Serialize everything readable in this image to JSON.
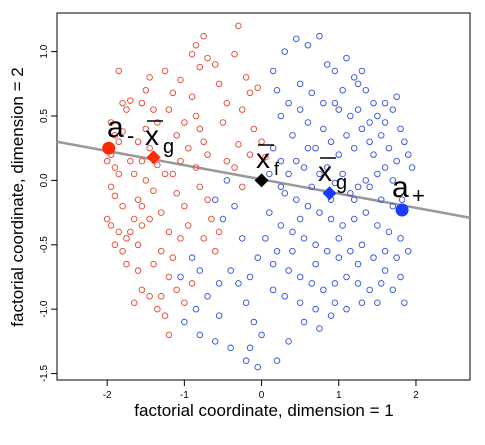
{
  "chart_data": {
    "type": "scatter",
    "title": "",
    "xlabel": "factorial coordinate, dimension = 1",
    "ylabel": "factorial coordinate, dimension = 2",
    "xlim": [
      -2.65,
      2.7
    ],
    "ylim": [
      -1.55,
      1.3
    ],
    "xticks": [
      -2,
      -1,
      0,
      1,
      2
    ],
    "yticks": [
      -1.5,
      -1.0,
      -0.5,
      0.0,
      0.5,
      1.0
    ],
    "xtick_labels": [
      "-2",
      "-1",
      "0",
      "1",
      "2"
    ],
    "ytick_labels": [
      "-1.5",
      "-1.0",
      "-0.5",
      "0.0",
      "0.5",
      "1.0"
    ],
    "grid": false,
    "legend": "none",
    "series": [
      {
        "color": "#e8442b",
        "marker": "open-circle",
        "points": [
          [
            -1.85,
            0.85
          ],
          [
            -1.8,
            0.6
          ],
          [
            -1.75,
            0.55
          ],
          [
            -1.7,
            0.62
          ],
          [
            -1.95,
            0.45
          ],
          [
            -1.9,
            0.35
          ],
          [
            -1.85,
            0.3
          ],
          [
            -1.8,
            0.38
          ],
          [
            -1.95,
            0.2
          ],
          [
            -2.0,
            0.15
          ],
          [
            -1.9,
            0.1
          ],
          [
            -1.85,
            0.05
          ],
          [
            -1.95,
            -0.05
          ],
          [
            -1.9,
            -0.12
          ],
          [
            -1.8,
            -0.2
          ],
          [
            -2.0,
            -0.3
          ],
          [
            -1.95,
            -0.35
          ],
          [
            -1.85,
            -0.4
          ],
          [
            -1.75,
            -0.45
          ],
          [
            -1.9,
            -0.5
          ],
          [
            -1.8,
            -0.55
          ],
          [
            -1.7,
            -0.4
          ],
          [
            -1.65,
            -0.3
          ],
          [
            -1.6,
            -0.5
          ],
          [
            -1.75,
            -0.65
          ],
          [
            -1.6,
            -0.7
          ],
          [
            -1.55,
            -0.85
          ],
          [
            -1.45,
            -0.9
          ],
          [
            -1.35,
            -1.0
          ],
          [
            -1.25,
            -1.05
          ],
          [
            -1.65,
            -0.95
          ],
          [
            -1.5,
            0.7
          ],
          [
            -1.45,
            0.8
          ],
          [
            -1.55,
            0.6
          ],
          [
            -1.4,
            0.55
          ],
          [
            -1.35,
            0.45
          ],
          [
            -1.5,
            0.4
          ],
          [
            -1.6,
            0.3
          ],
          [
            -1.45,
            0.25
          ],
          [
            -1.55,
            0.15
          ],
          [
            -1.35,
            0.12
          ],
          [
            -1.25,
            0.05
          ],
          [
            -1.5,
            0.0
          ],
          [
            -1.4,
            -0.08
          ],
          [
            -1.6,
            -0.15
          ],
          [
            -1.3,
            -0.25
          ],
          [
            -1.45,
            -0.3
          ],
          [
            -1.55,
            -0.35
          ],
          [
            -1.2,
            -0.4
          ],
          [
            -1.3,
            -0.55
          ],
          [
            -1.4,
            -0.65
          ],
          [
            -1.2,
            -0.75
          ],
          [
            -1.15,
            -0.6
          ],
          [
            -1.1,
            -0.85
          ],
          [
            -1.0,
            -0.95
          ],
          [
            -1.05,
            -0.45
          ],
          [
            -0.95,
            -0.35
          ],
          [
            -1.0,
            -0.2
          ],
          [
            -1.1,
            -0.1
          ],
          [
            -1.15,
            0.05
          ],
          [
            -1.05,
            0.15
          ],
          [
            -0.95,
            0.25
          ],
          [
            -1.1,
            0.35
          ],
          [
            -1.0,
            0.45
          ],
          [
            -1.2,
            0.55
          ],
          [
            -1.15,
            0.68
          ],
          [
            -1.05,
            0.78
          ],
          [
            -0.9,
            0.65
          ],
          [
            -0.85,
            0.5
          ],
          [
            -0.8,
            0.4
          ],
          [
            -0.75,
            0.3
          ],
          [
            -0.7,
            0.2
          ],
          [
            -0.85,
            0.1
          ],
          [
            -0.8,
            -0.05
          ],
          [
            -0.7,
            -0.15
          ],
          [
            -0.65,
            -0.3
          ],
          [
            -0.75,
            -0.45
          ],
          [
            -0.6,
            -0.55
          ],
          [
            -0.55,
            -0.4
          ],
          [
            -0.5,
            0.45
          ],
          [
            -0.45,
            0.6
          ],
          [
            -0.55,
            0.75
          ],
          [
            -0.6,
            0.9
          ],
          [
            -0.7,
            0.95
          ],
          [
            -0.8,
            0.88
          ],
          [
            -0.9,
            0.98
          ],
          [
            -0.85,
            1.05
          ],
          [
            -0.75,
            1.12
          ],
          [
            -0.3,
            1.2
          ],
          [
            -0.35,
            0.98
          ],
          [
            -0.2,
            0.8
          ],
          [
            -0.25,
            0.55
          ],
          [
            -0.15,
            0.68
          ],
          [
            -0.05,
            0.72
          ],
          [
            -0.1,
            0.4
          ],
          [
            -0.3,
            0.28
          ],
          [
            -0.35,
            0.1
          ],
          [
            -0.25,
            -0.05
          ],
          [
            -0.15,
            0.2
          ],
          [
            0.0,
            0.3
          ],
          [
            0.05,
            0.18
          ],
          [
            -1.2,
            -1.2
          ],
          [
            -1.3,
            -0.9
          ],
          [
            -0.9,
            -0.8
          ],
          [
            -1.25,
            0.85
          ],
          [
            -1.55,
            -0.2
          ],
          [
            -1.7,
            0.15
          ],
          [
            -1.65,
            0.05
          ],
          [
            -0.45,
            0.15
          ]
        ]
      },
      {
        "color": "#2f4fe0",
        "marker": "open-circle",
        "points": [
          [
            0.3,
            1.0
          ],
          [
            0.45,
            1.1
          ],
          [
            0.6,
            1.05
          ],
          [
            0.75,
            1.12
          ],
          [
            0.85,
            0.9
          ],
          [
            0.95,
            0.85
          ],
          [
            1.1,
            0.95
          ],
          [
            1.2,
            0.8
          ],
          [
            1.25,
            0.75
          ],
          [
            1.35,
            0.7
          ],
          [
            1.45,
            0.6
          ],
          [
            1.5,
            0.5
          ],
          [
            1.6,
            0.45
          ],
          [
            1.7,
            0.55
          ],
          [
            1.8,
            0.4
          ],
          [
            1.85,
            0.3
          ],
          [
            1.9,
            0.2
          ],
          [
            1.75,
            0.15
          ],
          [
            1.65,
            0.25
          ],
          [
            1.55,
            0.35
          ],
          [
            1.4,
            0.3
          ],
          [
            1.3,
            0.4
          ],
          [
            1.2,
            0.25
          ],
          [
            1.1,
            0.35
          ],
          [
            1.0,
            0.2
          ],
          [
            0.9,
            0.3
          ],
          [
            0.8,
            0.4
          ],
          [
            0.7,
            0.25
          ],
          [
            0.6,
            0.45
          ],
          [
            0.5,
            0.55
          ],
          [
            0.4,
            0.35
          ],
          [
            0.35,
            0.6
          ],
          [
            0.25,
            0.5
          ],
          [
            0.2,
            0.7
          ],
          [
            0.15,
            0.85
          ],
          [
            0.5,
            0.75
          ],
          [
            0.65,
            0.68
          ],
          [
            0.8,
            0.6
          ],
          [
            1.0,
            0.55
          ],
          [
            1.15,
            0.5
          ],
          [
            1.25,
            0.55
          ],
          [
            1.4,
            0.45
          ],
          [
            1.6,
            0.1
          ],
          [
            1.7,
            0.0
          ],
          [
            1.5,
            0.05
          ],
          [
            1.35,
            0.0
          ],
          [
            1.25,
            -0.05
          ],
          [
            1.15,
            -0.1
          ],
          [
            1.05,
            0.05
          ],
          [
            0.95,
            -0.02
          ],
          [
            0.85,
            0.1
          ],
          [
            0.75,
            0.05
          ],
          [
            0.65,
            -0.05
          ],
          [
            0.55,
            0.1
          ],
          [
            0.45,
            0.15
          ],
          [
            0.35,
            0.05
          ],
          [
            0.25,
            0.15
          ],
          [
            0.15,
            0.25
          ],
          [
            0.3,
            -0.1
          ],
          [
            0.45,
            -0.15
          ],
          [
            0.6,
            -0.2
          ],
          [
            0.75,
            -0.25
          ],
          [
            0.9,
            -0.3
          ],
          [
            1.05,
            -0.35
          ],
          [
            1.2,
            -0.3
          ],
          [
            1.35,
            -0.25
          ],
          [
            1.5,
            -0.35
          ],
          [
            1.65,
            -0.4
          ],
          [
            1.8,
            -0.45
          ],
          [
            1.9,
            -0.55
          ],
          [
            1.75,
            -0.6
          ],
          [
            1.6,
            -0.55
          ],
          [
            1.45,
            -0.6
          ],
          [
            1.3,
            -0.5
          ],
          [
            1.15,
            -0.55
          ],
          [
            1.0,
            -0.6
          ],
          [
            0.85,
            -0.55
          ],
          [
            0.7,
            -0.5
          ],
          [
            0.55,
            -0.45
          ],
          [
            0.4,
            -0.4
          ],
          [
            0.25,
            -0.35
          ],
          [
            0.1,
            -0.25
          ],
          [
            0.05,
            -0.45
          ],
          [
            0.2,
            -0.55
          ],
          [
            0.35,
            -0.7
          ],
          [
            0.5,
            -0.75
          ],
          [
            0.65,
            -0.8
          ],
          [
            0.8,
            -0.85
          ],
          [
            0.95,
            -0.8
          ],
          [
            1.1,
            -0.75
          ],
          [
            1.25,
            -0.8
          ],
          [
            1.4,
            -0.85
          ],
          [
            1.55,
            -0.8
          ],
          [
            1.7,
            -0.85
          ],
          [
            1.8,
            -0.75
          ],
          [
            1.85,
            -0.95
          ],
          [
            1.6,
            -0.7
          ],
          [
            1.3,
            -0.95
          ],
          [
            1.1,
            -1.0
          ],
          [
            0.9,
            -1.05
          ],
          [
            0.7,
            -1.0
          ],
          [
            0.5,
            -0.95
          ],
          [
            0.3,
            -0.9
          ],
          [
            0.15,
            -0.85
          ],
          [
            0.55,
            -1.1
          ],
          [
            0.75,
            -1.15
          ],
          [
            0.35,
            -1.25
          ],
          [
            0.2,
            -1.4
          ],
          [
            0.0,
            -1.2
          ],
          [
            -0.1,
            -1.1
          ],
          [
            -0.2,
            -0.95
          ],
          [
            -0.3,
            -0.8
          ],
          [
            -0.4,
            -0.7
          ],
          [
            -0.55,
            -0.8
          ],
          [
            -0.7,
            -0.9
          ],
          [
            -0.85,
            -1.0
          ],
          [
            -1.0,
            -1.1
          ],
          [
            -0.8,
            -1.2
          ],
          [
            -0.6,
            -1.25
          ],
          [
            -0.4,
            -1.3
          ],
          [
            -0.2,
            -1.4
          ],
          [
            -0.05,
            -1.45
          ],
          [
            -0.15,
            -1.3
          ],
          [
            -0.5,
            -0.3
          ],
          [
            -0.6,
            -0.15
          ],
          [
            -0.45,
            0.0
          ],
          [
            -0.35,
            -0.2
          ],
          [
            -0.25,
            -0.45
          ],
          [
            -0.05,
            -0.6
          ],
          [
            -0.15,
            -0.75
          ],
          [
            -0.9,
            -0.6
          ],
          [
            -1.05,
            -0.75
          ],
          [
            -0.8,
            -0.7
          ],
          [
            -0.55,
            -1.05
          ],
          [
            1.7,
            -0.2
          ],
          [
            1.82,
            -0.15
          ],
          [
            1.55,
            -0.15
          ],
          [
            1.95,
            0.1
          ],
          [
            1.45,
            0.2
          ],
          [
            1.6,
            0.6
          ],
          [
            1.75,
            0.65
          ],
          [
            1.3,
            0.85
          ],
          [
            1.05,
            0.7
          ],
          [
            0.95,
            0.6
          ],
          [
            0.9,
            -0.15
          ],
          [
            1.0,
            -0.45
          ],
          [
            1.2,
            -0.15
          ],
          [
            1.4,
            -0.05
          ],
          [
            0.6,
            0.25
          ],
          [
            0.5,
            -0.3
          ],
          [
            0.7,
            -0.65
          ],
          [
            0.4,
            -0.55
          ],
          [
            0.25,
            -0.05
          ],
          [
            0.1,
            0.05
          ],
          [
            1.25,
            -0.65
          ],
          [
            1.5,
            -0.95
          ],
          [
            0.95,
            -0.95
          ],
          [
            0.15,
            -0.65
          ]
        ]
      }
    ],
    "regression_line": {
      "from": [
        -2.65,
        0.3
      ],
      "to": [
        2.7,
        -0.29
      ],
      "color": "#999999"
    },
    "highlighted_points": [
      {
        "x": -1.98,
        "y": 0.25,
        "shape": "circle",
        "color": "#ff2a00",
        "label": "a-"
      },
      {
        "x": -1.4,
        "y": 0.18,
        "shape": "diamond",
        "color": "#ff2a00",
        "label": "x̄g"
      },
      {
        "x": 0.0,
        "y": 0.0,
        "shape": "diamond",
        "color": "#000000",
        "label": "x̄f"
      },
      {
        "x": 0.88,
        "y": -0.1,
        "shape": "diamond",
        "color": "#1a3cff",
        "label": "x̄g"
      },
      {
        "x": 1.82,
        "y": -0.23,
        "shape": "circle",
        "color": "#1a3cff",
        "label": "a+"
      }
    ]
  },
  "annotations": {
    "a_minus": {
      "main": "a",
      "sub": "-"
    },
    "xg_red": {
      "main": "x",
      "sub": "g"
    },
    "xf": {
      "main": "x",
      "sub": "f"
    },
    "xg_blue": {
      "main": "x",
      "sub": "g"
    },
    "a_plus": {
      "main": "a",
      "sub": "+"
    }
  }
}
